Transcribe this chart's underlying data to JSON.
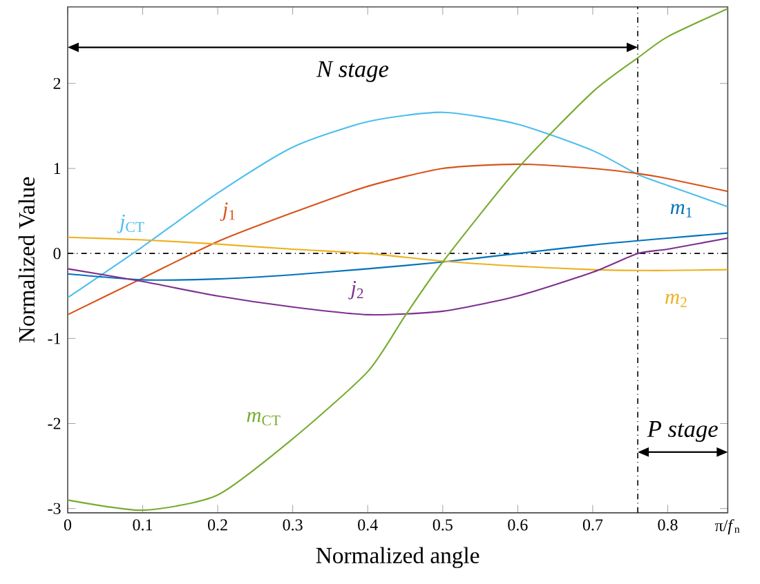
{
  "chart_data": {
    "type": "line",
    "xlabel": "Normalized angle",
    "ylabel": "Normalized Value",
    "xlim": [
      0,
      0.88
    ],
    "ylim": [
      -3.05,
      2.9
    ],
    "xticks": [
      0,
      0.1,
      0.2,
      0.3,
      0.4,
      0.5,
      0.6,
      0.7,
      0.8,
      {
        "value": 0.88,
        "label": "π/*f*$_{n}$"
      }
    ],
    "yticks": [
      -3,
      -2,
      -1,
      0,
      1,
      2
    ],
    "grid": false,
    "line_style": "solid",
    "ref_lines": [
      {
        "axis": "x",
        "value": 0.76,
        "line_style": "dashdot",
        "color": "#000000"
      },
      {
        "axis": "y",
        "value": 0,
        "line_style": "dashdot",
        "color": "#000000"
      }
    ],
    "annotations": [
      "*N stage*",
      "*P stage*"
    ],
    "series": [
      {
        "name": "*j*$_{CT}$",
        "color": "#4DBEEE",
        "x": [
          0,
          0.1,
          0.2,
          0.3,
          0.4,
          0.5,
          0.6,
          0.7,
          0.76,
          0.8,
          0.88
        ],
        "values": [
          -0.52,
          0.08,
          0.71,
          1.25,
          1.55,
          1.66,
          1.52,
          1.21,
          0.93,
          0.8,
          0.55
        ]
      },
      {
        "name": "*j*$_{1}$",
        "color": "#D95319",
        "x": [
          0,
          0.1,
          0.2,
          0.3,
          0.4,
          0.5,
          0.6,
          0.7,
          0.76,
          0.8,
          0.88
        ],
        "values": [
          -0.72,
          -0.29,
          0.14,
          0.48,
          0.79,
          1.0,
          1.05,
          1.0,
          0.94,
          0.88,
          0.73
        ]
      },
      {
        "name": "*m*$_{1}$",
        "color": "#0072BD",
        "x": [
          0,
          0.1,
          0.2,
          0.3,
          0.4,
          0.5,
          0.6,
          0.7,
          0.76,
          0.8,
          0.88
        ],
        "values": [
          -0.24,
          -0.31,
          -0.3,
          -0.25,
          -0.18,
          -0.1,
          0.0,
          0.1,
          0.15,
          0.18,
          0.24
        ]
      },
      {
        "name": "*m*$_{2}$",
        "color": "#EDB120",
        "x": [
          0,
          0.1,
          0.2,
          0.3,
          0.4,
          0.5,
          0.6,
          0.7,
          0.76,
          0.8,
          0.88
        ],
        "values": [
          0.19,
          0.16,
          0.11,
          0.05,
          0.0,
          -0.09,
          -0.15,
          -0.19,
          -0.2,
          -0.2,
          -0.19
        ]
      },
      {
        "name": "*j*$_{2}$",
        "color": "#7E2F8E",
        "x": [
          0,
          0.1,
          0.2,
          0.3,
          0.4,
          0.5,
          0.6,
          0.7,
          0.76,
          0.8,
          0.88
        ],
        "values": [
          -0.18,
          -0.33,
          -0.5,
          -0.63,
          -0.72,
          -0.68,
          -0.5,
          -0.22,
          0.0,
          0.05,
          0.18
        ]
      },
      {
        "name": "*m*$_{CT}$",
        "color": "#77AC30",
        "x": [
          0,
          0.1,
          0.2,
          0.3,
          0.4,
          0.45,
          0.5,
          0.6,
          0.7,
          0.76,
          0.8,
          0.88
        ],
        "values": [
          -2.9,
          -3.02,
          -2.84,
          -2.18,
          -1.39,
          -0.73,
          -0.1,
          1.0,
          1.9,
          2.3,
          2.55,
          2.88
        ]
      }
    ]
  }
}
